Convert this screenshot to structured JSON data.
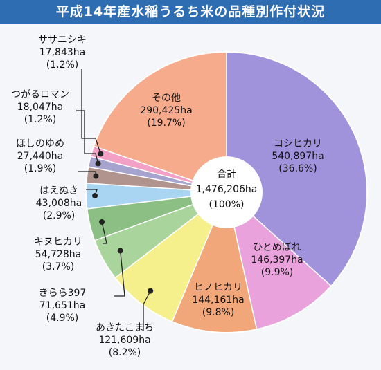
{
  "chart_data": {
    "type": "pie",
    "title": "平成14年産水稲うるち米の品種別作付状況",
    "donut": true,
    "center_label": [
      "合計",
      "1,476,206ha",
      "(100%)"
    ],
    "categories": [
      "コシヒカリ",
      "ひとめぼれ",
      "ヒノヒカリ",
      "あきたこまち",
      "きらら397",
      "キヌヒカリ",
      "はえぬき",
      "ほしのゆめ",
      "つがるロマン",
      "ササニシキ",
      "その他"
    ],
    "values": [
      540897,
      146397,
      144161,
      121609,
      71651,
      54728,
      43008,
      27440,
      18047,
      17843,
      290425
    ],
    "units": "ha",
    "labels": [
      [
        "コシヒカリ",
        "540,897ha",
        "(36.6%)"
      ],
      [
        "ひとめぼれ",
        "146,397ha",
        "(9.9%)"
      ],
      [
        "ヒノヒカリ",
        "144,161ha",
        "(9.8%)"
      ],
      [
        "あきたこまち",
        "121,609ha",
        "(8.2%)"
      ],
      [
        "きらら397",
        "71,651ha",
        "(4.9%)"
      ],
      [
        "キヌヒカリ",
        "54,728ha",
        "(3.7%)"
      ],
      [
        "はえぬき",
        "43,008ha",
        "(2.9%)"
      ],
      [
        "ほしのゆめ",
        "27,440ha",
        "(1.9%)"
      ],
      [
        "つがるロマン",
        "18,047ha",
        "(1.2%)"
      ],
      [
        "ササニシキ",
        "17,843ha",
        "(1.2%)"
      ],
      [
        "その他",
        "290,425ha",
        "(19.7%)"
      ]
    ],
    "colors": [
      "#a192dc",
      "#eaa2dc",
      "#f2a77a",
      "#f6f08c",
      "#a9d49c",
      "#8bbf83",
      "#a9d4f2",
      "#b2948e",
      "#a6a4cf",
      "#f2a0c6",
      "#f6ab8c"
    ]
  }
}
